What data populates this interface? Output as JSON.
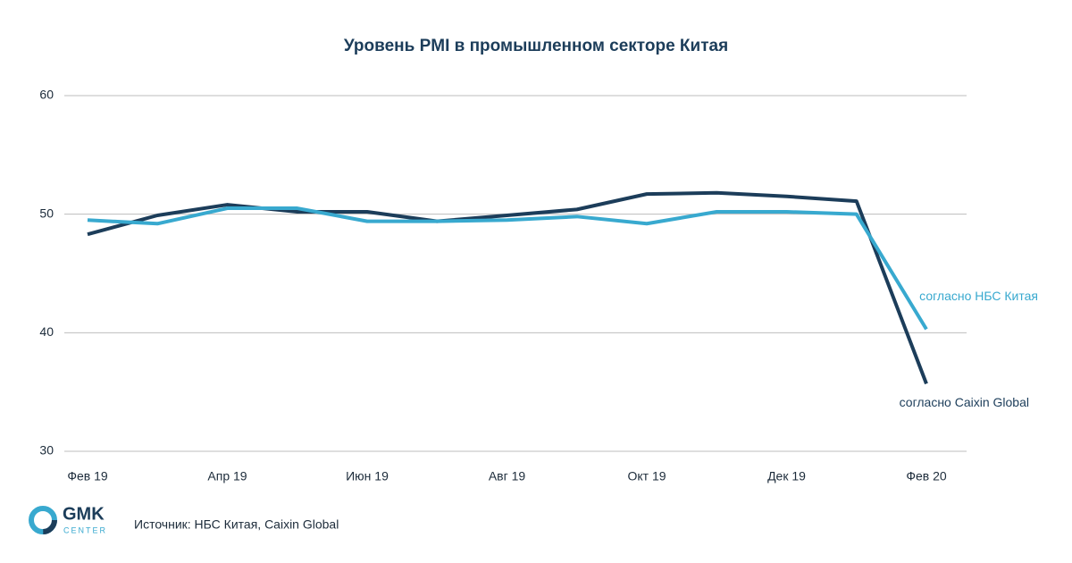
{
  "chart_data": {
    "type": "line",
    "title": "Уровень PMI в промышленном секторе Китая",
    "categories": [
      "Фев 19",
      null,
      "Апр 19",
      null,
      "Июн 19",
      null,
      "Авг 19",
      null,
      "Окт 19",
      null,
      "Дек 19",
      null,
      "Фев 20"
    ],
    "series": [
      {
        "name": "согласно Caixin Global",
        "color": "#1c3d5a",
        "values": [
          48.3,
          49.9,
          50.8,
          50.2,
          50.2,
          49.4,
          49.9,
          50.4,
          51.7,
          51.8,
          51.5,
          51.1,
          35.7
        ]
      },
      {
        "name": "согласно НБС Китая",
        "color": "#38a9cf",
        "values": [
          49.5,
          49.2,
          50.5,
          50.5,
          49.4,
          49.4,
          49.5,
          49.8,
          49.2,
          50.2,
          50.2,
          50.0,
          40.3
        ]
      }
    ],
    "ylim": [
      30,
      60
    ],
    "yticks": [
      30,
      40,
      50,
      60
    ],
    "grid": true,
    "source": "Источник: НБС Китая, Caixin Global",
    "logo": {
      "name": "GMK",
      "sub": "CENTER"
    }
  }
}
